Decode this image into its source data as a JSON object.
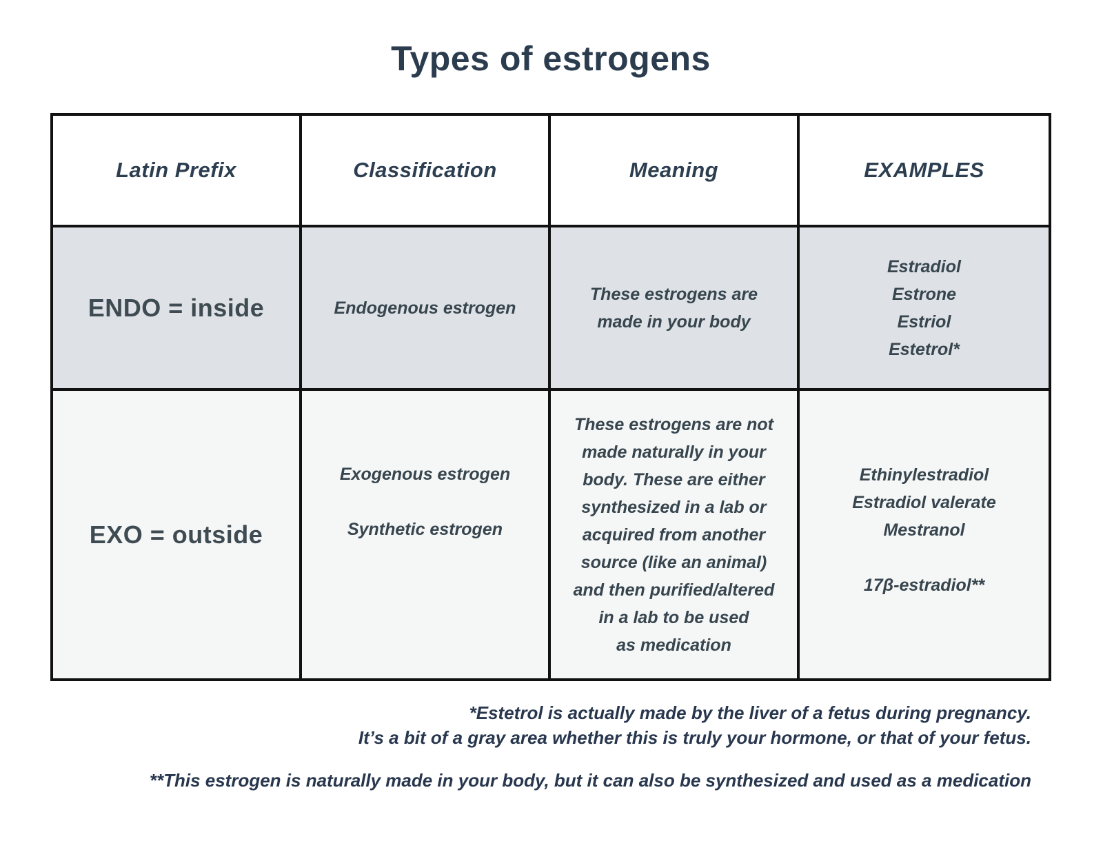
{
  "title": "Types of estrogens",
  "table": {
    "headers": [
      {
        "label": "Latin Prefix"
      },
      {
        "label": "Classification"
      },
      {
        "label": "Meaning"
      },
      {
        "label": "EXAMPLES"
      }
    ],
    "rows": [
      {
        "prefix": "ENDO = inside",
        "classification": [
          "Endogenous estrogen"
        ],
        "meaning": [
          "These estrogens are",
          "made in your body"
        ],
        "examples": [
          "Estradiol",
          "Estrone",
          "Estriol",
          "Estetrol*"
        ]
      },
      {
        "prefix": "EXO = outside",
        "classification": [
          "Exogenous estrogen",
          "",
          "Synthetic estrogen"
        ],
        "meaning": [
          "These estrogens are not",
          "made naturally in your",
          "body. These are either",
          "synthesized in a lab or",
          "acquired from another",
          "source (like an animal)",
          "and then purified/altered",
          "in a lab to be used",
          "as medication"
        ],
        "examples": [
          "Ethinylestradiol",
          "Estradiol valerate",
          "Mestranol",
          "",
          "17β-estradiol**"
        ]
      }
    ]
  },
  "footnotes": {
    "note1_line1": "*Estetrol is actually made by the liver of a fetus during pregnancy.",
    "note1_line2": "It’s a bit of a gray area whether this is truly your hormone, or that of your fetus.",
    "note2": "**This estrogen is naturally made in your body, but it can also be synthesized and used as a medication"
  },
  "colors": {
    "title_text": "#2b3c4e",
    "header_text": "#2c3e50",
    "cell_text": "#37454e",
    "prefix_text": "#3e4b52",
    "footnote_text": "#28374e",
    "row_endo_bg": "#dee2e6",
    "row_exo_bg": "#f5f6f6",
    "header_bg": "#ffffff",
    "border": "#111111"
  }
}
